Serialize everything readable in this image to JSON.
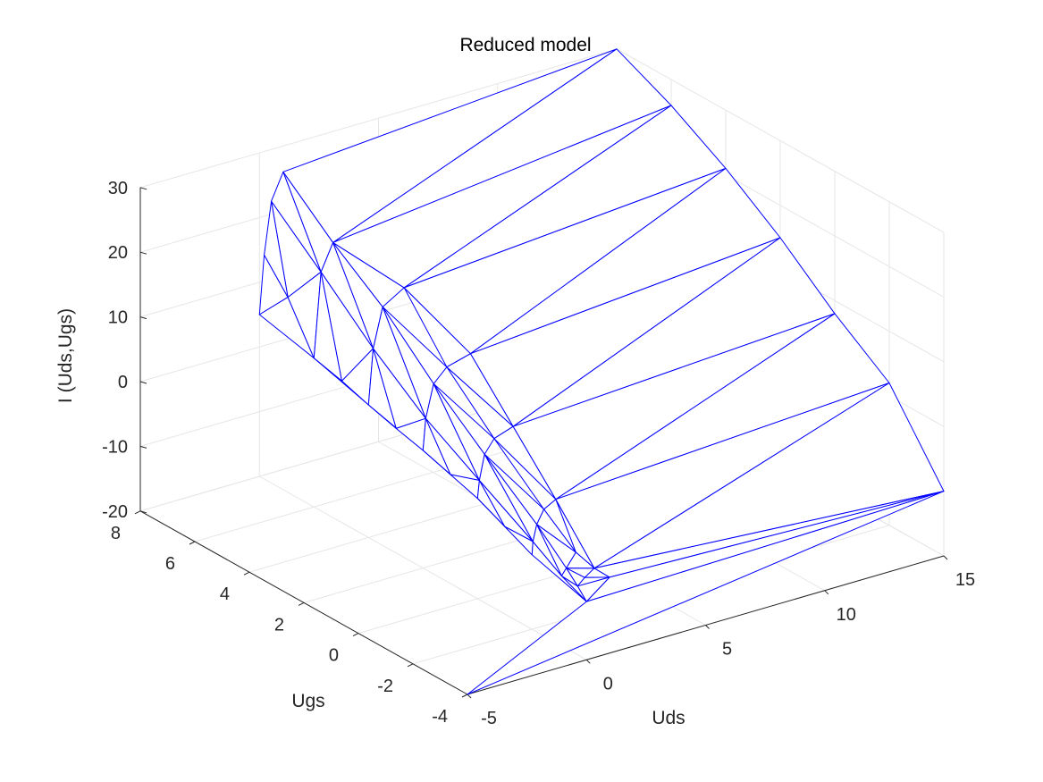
{
  "chart_data": {
    "type": "mesh3d",
    "title": "Reduced model",
    "xlabel": "Uds",
    "ylabel": "Ugs",
    "zlabel": "I (Uds,Ugs)",
    "xlim": [
      -5,
      15
    ],
    "ylim": [
      -4,
      8
    ],
    "zlim": [
      -20,
      30
    ],
    "xticks": [
      "-5",
      "0",
      "5",
      "10",
      "15"
    ],
    "xtick_values": [
      -5,
      0,
      5,
      10,
      15
    ],
    "yticks": [
      "-4",
      "-2",
      "0",
      "2",
      "4",
      "6",
      "8"
    ],
    "ytick_values": [
      -4,
      -2,
      0,
      2,
      4,
      6,
      8
    ],
    "zticks": [
      "-20",
      "-10",
      "0",
      "10",
      "20",
      "30"
    ],
    "ztick_values": [
      -20,
      -10,
      0,
      10,
      20,
      30
    ],
    "grid": true,
    "mesh_color": "#0000ff",
    "grid_color": "#e6e6e6",
    "axis_color": "#262626",
    "series": [
      {
        "vertices": [
          [
            -5,
            -4,
            -20
          ],
          [
            15,
            -4,
            -10
          ],
          [
            15,
            8,
            30
          ],
          [
            1,
            8,
            26
          ],
          [
            0.5,
            8,
            22
          ],
          [
            0.2,
            8,
            14
          ],
          [
            0,
            8,
            5
          ],
          [
            -0.3,
            8,
            -5
          ],
          [
            0,
            6,
            3
          ],
          [
            0,
            4,
            0.5
          ],
          [
            0,
            2,
            -1.8
          ],
          [
            0,
            0,
            -4.5
          ],
          [
            0,
            -2,
            -8.5
          ],
          [
            0,
            -4,
            -11
          ],
          [
            0.05,
            7,
            10
          ],
          [
            0.03,
            5,
            1.8
          ],
          [
            0.02,
            3,
            -0.8
          ],
          [
            0.01,
            1,
            -3.2
          ],
          [
            0,
            -1,
            -6.5
          ],
          [
            0.3,
            6,
            16
          ],
          [
            0.2,
            4,
            9
          ],
          [
            0.12,
            2,
            3
          ],
          [
            0.08,
            0,
            -1.8
          ],
          [
            0.04,
            -2,
            -6.5
          ],
          [
            0.8,
            6,
            20
          ],
          [
            0.6,
            4,
            15
          ],
          [
            0.45,
            2,
            8
          ],
          [
            0.3,
            0,
            2
          ],
          [
            0.2,
            -2,
            -4
          ],
          [
            1.5,
            4,
            17
          ],
          [
            1.0,
            2,
            10
          ],
          [
            0.7,
            0,
            4
          ],
          [
            0.5,
            -2,
            -2
          ],
          [
            2,
            2,
            11
          ],
          [
            1.5,
            0,
            5
          ],
          [
            1.0,
            -2,
            -1
          ],
          [
            0.7,
            -3,
            -6.5
          ],
          [
            0.3,
            -3,
            -8.5
          ],
          [
            0.1,
            -3,
            -9.5
          ],
          [
            0.9,
            -3.5,
            -8
          ],
          [
            0.5,
            -3.5,
            -9
          ],
          [
            0.2,
            -3.5,
            -10
          ],
          [
            1.2,
            -3.8,
            -9
          ],
          [
            15,
            6,
            26
          ],
          [
            15,
            4,
            21
          ],
          [
            15,
            2,
            15
          ],
          [
            15,
            0,
            8
          ],
          [
            15,
            -2,
            2
          ]
        ],
        "triangles": [
          [
            4,
            14,
            19
          ],
          [
            5,
            6,
            14
          ],
          [
            4,
            5,
            14
          ],
          [
            6,
            8,
            14
          ],
          [
            8,
            19,
            14
          ],
          [
            8,
            15,
            19
          ],
          [
            15,
            20,
            19
          ],
          [
            8,
            9,
            15
          ],
          [
            9,
            20,
            15
          ],
          [
            9,
            16,
            20
          ],
          [
            16,
            21,
            20
          ],
          [
            9,
            10,
            16
          ],
          [
            10,
            21,
            16
          ],
          [
            10,
            17,
            21
          ],
          [
            17,
            22,
            21
          ],
          [
            10,
            11,
            17
          ],
          [
            11,
            22,
            17
          ],
          [
            11,
            18,
            22
          ],
          [
            18,
            23,
            22
          ],
          [
            11,
            12,
            18
          ],
          [
            12,
            23,
            18
          ],
          [
            12,
            13,
            23
          ],
          [
            13,
            38,
            23
          ],
          [
            13,
            41,
            38
          ],
          [
            3,
            4,
            19
          ],
          [
            3,
            19,
            24
          ],
          [
            19,
            20,
            24
          ],
          [
            20,
            25,
            24
          ],
          [
            20,
            21,
            25
          ],
          [
            21,
            26,
            25
          ],
          [
            21,
            22,
            26
          ],
          [
            22,
            27,
            26
          ],
          [
            22,
            23,
            27
          ],
          [
            23,
            28,
            27
          ],
          [
            23,
            38,
            28
          ],
          [
            38,
            37,
            28
          ],
          [
            38,
            41,
            37
          ],
          [
            41,
            40,
            37
          ],
          [
            37,
            36,
            28
          ],
          [
            28,
            32,
            27
          ],
          [
            27,
            31,
            26
          ],
          [
            26,
            30,
            25
          ],
          [
            25,
            29,
            24
          ],
          [
            29,
            30,
            33
          ],
          [
            30,
            31,
            34
          ],
          [
            30,
            34,
            33
          ],
          [
            31,
            32,
            35
          ],
          [
            31,
            35,
            34
          ],
          [
            32,
            36,
            35
          ],
          [
            32,
            28,
            36
          ],
          [
            36,
            39,
            35
          ],
          [
            37,
            40,
            39
          ],
          [
            36,
            37,
            39
          ],
          [
            40,
            42,
            39
          ],
          [
            41,
            42,
            40
          ],
          [
            13,
            42,
            41
          ],
          [
            2,
            3,
            24
          ],
          [
            2,
            24,
            43
          ],
          [
            24,
            29,
            43
          ],
          [
            29,
            44,
            43
          ],
          [
            29,
            33,
            44
          ],
          [
            33,
            45,
            44
          ],
          [
            33,
            34,
            45
          ],
          [
            34,
            46,
            45
          ],
          [
            34,
            35,
            46
          ],
          [
            35,
            47,
            46
          ],
          [
            35,
            39,
            47
          ],
          [
            39,
            1,
            47
          ],
          [
            39,
            42,
            1
          ],
          [
            42,
            13,
            1
          ],
          [
            13,
            0,
            1
          ]
        ]
      }
    ]
  }
}
